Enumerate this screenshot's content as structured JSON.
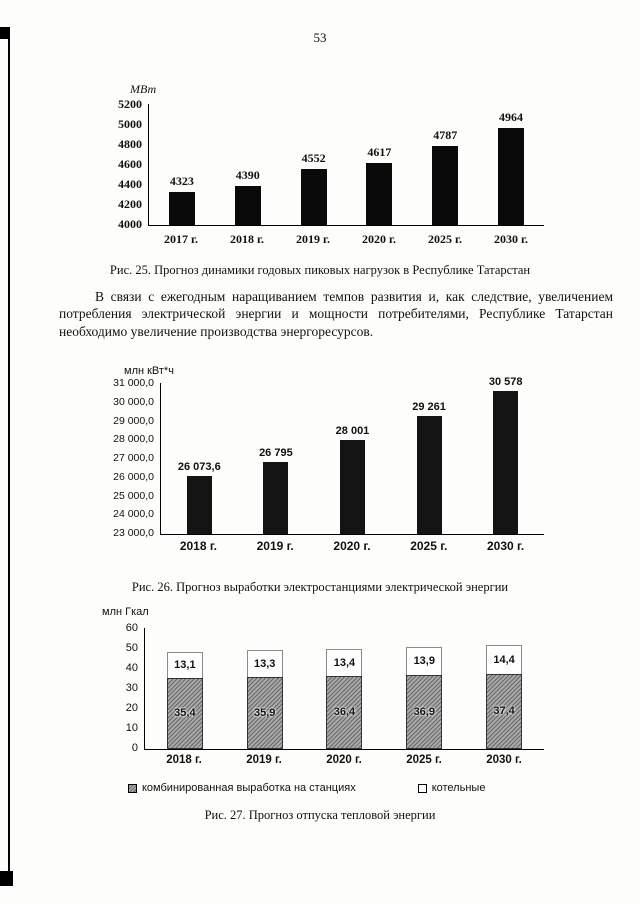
{
  "page": {
    "number": "53",
    "paragraph": "В связи с ежегодным наращиванием темпов развития и, как следствие, увеличением потребления электрической энергии и мощности потребителями, Республике Татарстан необходимо увеличение производства энергоресурсов."
  },
  "chart_data": [
    {
      "type": "bar",
      "caption": "Рис. 25. Прогноз динамики годовых пиковых нагрузок в Республике Татарстан",
      "ylabel": "МВт",
      "categories": [
        "2017 г.",
        "2018 г.",
        "2019 г.",
        "2020 г.",
        "2025 г.",
        "2030 г."
      ],
      "values": [
        4323,
        4390,
        4552,
        4617,
        4787,
        4964
      ],
      "value_labels": [
        "4323",
        "4390",
        "4552",
        "4617",
        "4787",
        "4964"
      ],
      "ylim": [
        4000,
        5200
      ],
      "yticks": [
        "5200",
        "5000",
        "4800",
        "4600",
        "4400",
        "4200",
        "4000"
      ],
      "bar_color": "#0a0a0a",
      "grid": false,
      "legend_position": "none"
    },
    {
      "type": "bar",
      "caption": "Рис. 26. Прогноз выработки электростанциями электрической энергии",
      "ylabel": "млн кВт*ч",
      "categories": [
        "2018 г.",
        "2019 г.",
        "2020 г.",
        "2025 г.",
        "2030 г."
      ],
      "values": [
        26073.6,
        26795,
        28001,
        29261,
        30578
      ],
      "value_labels": [
        "26 073,6",
        "26 795",
        "28 001",
        "29 261",
        "30 578"
      ],
      "ylim": [
        23000,
        31000
      ],
      "yticks": [
        "31 000,0",
        "30 000,0",
        "29 000,0",
        "28 000,0",
        "27 000,0",
        "26 000,0",
        "25 000,0",
        "24 000,0",
        "23 000,0"
      ],
      "bar_color": "#141414",
      "grid": false,
      "legend_position": "none"
    },
    {
      "type": "bar",
      "stacked": true,
      "caption": "Рис. 27. Прогноз отпуска тепловой энергии",
      "ylabel": "млн Гкал",
      "categories": [
        "2018 г.",
        "2019 г.",
        "2020 г.",
        "2025 г.",
        "2030 г."
      ],
      "series": [
        {
          "name": "комбинированная выработка на станциях",
          "values": [
            35.4,
            35.9,
            36.4,
            36.9,
            37.4
          ],
          "value_labels": [
            "35,4",
            "35,9",
            "36,4",
            "36,9",
            "37,4"
          ],
          "fill": "hatched-gray",
          "hex": "#a8a8a8"
        },
        {
          "name": "котельные",
          "values": [
            13.1,
            13.3,
            13.4,
            13.9,
            14.4
          ],
          "value_labels": [
            "13,1",
            "13,3",
            "13,4",
            "13,9",
            "14,4"
          ],
          "fill": "white",
          "hex": "#ffffff"
        }
      ],
      "ylim": [
        0,
        60
      ],
      "yticks": [
        "60",
        "50",
        "40",
        "30",
        "20",
        "10",
        "0"
      ],
      "grid": false,
      "legend_position": "bottom"
    }
  ]
}
